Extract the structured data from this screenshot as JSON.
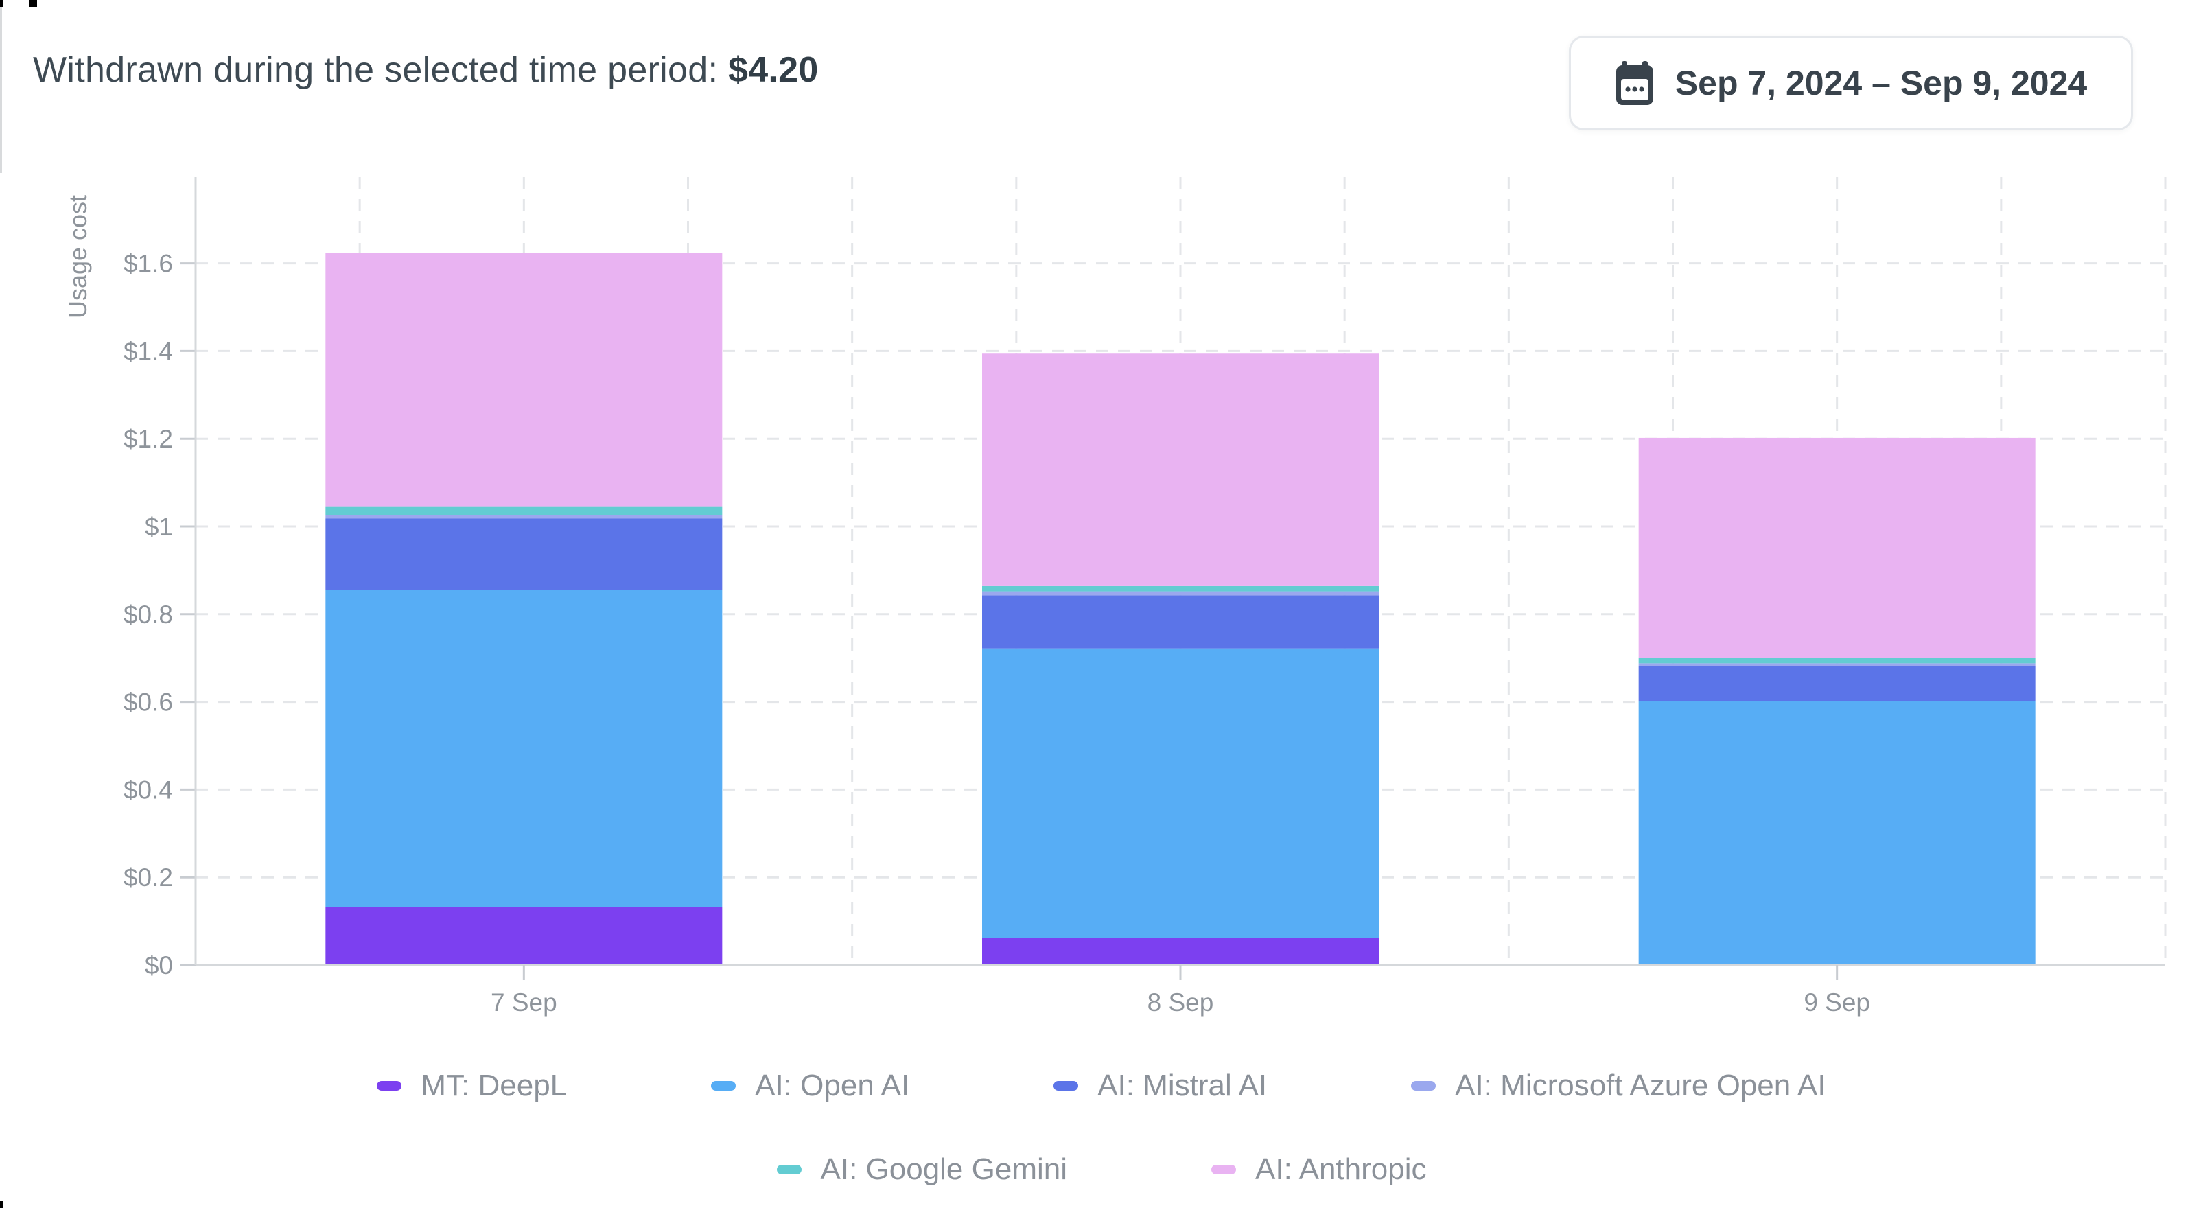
{
  "header": {
    "prefix": "Withdrawn during the selected time period:",
    "amount": "$4.20"
  },
  "date_range": {
    "label": "Sep 7, 2024 – Sep 9, 2024",
    "icon": "calendar-icon"
  },
  "chart_data": {
    "type": "bar",
    "stacked": true,
    "title": "",
    "xlabel": "",
    "ylabel": "Usage cost",
    "ylim": [
      0,
      1.8
    ],
    "grid": "dashed",
    "legend_position": "bottom",
    "categories": [
      "7 Sep",
      "8 Sep",
      "9 Sep"
    ],
    "series": [
      {
        "name": "MT: DeepL",
        "color": "#7c40f0",
        "values": [
          0.132,
          0.062,
          0
        ]
      },
      {
        "name": "AI: Open AI",
        "color": "#57adf5",
        "values": [
          0.723,
          0.66,
          0.602
        ]
      },
      {
        "name": "AI: Mistral AI",
        "color": "#5b74e8",
        "values": [
          0.163,
          0.121,
          0.079
        ]
      },
      {
        "name": "AI: Microsoft Azure Open AI",
        "color": "#9aa8ee",
        "values": [
          0.008,
          0.009,
          0.007
        ]
      },
      {
        "name": "AI: Google Gemini",
        "color": "#63ccd2",
        "values": [
          0.02,
          0.012,
          0.012
        ]
      },
      {
        "name": "AI: Anthropic",
        "color": "#e9b3f2",
        "values": [
          0.577,
          0.53,
          0.502
        ]
      }
    ],
    "bar_totals": [
      1.62,
      1.39,
      1.2
    ],
    "yticks": [
      {
        "v": 0.0,
        "label": "$0"
      },
      {
        "v": 0.2,
        "label": "$0.2"
      },
      {
        "v": 0.4,
        "label": "$0.4"
      },
      {
        "v": 0.6,
        "label": "$0.6"
      },
      {
        "v": 0.8,
        "label": "$0.8"
      },
      {
        "v": 1.0,
        "label": "$1"
      },
      {
        "v": 1.2,
        "label": "$1.2"
      },
      {
        "v": 1.4,
        "label": "$1.4"
      },
      {
        "v": 1.6,
        "label": "$1.6"
      }
    ],
    "legend_rows": [
      [
        0,
        1,
        2,
        3
      ],
      [
        4,
        5
      ]
    ]
  }
}
